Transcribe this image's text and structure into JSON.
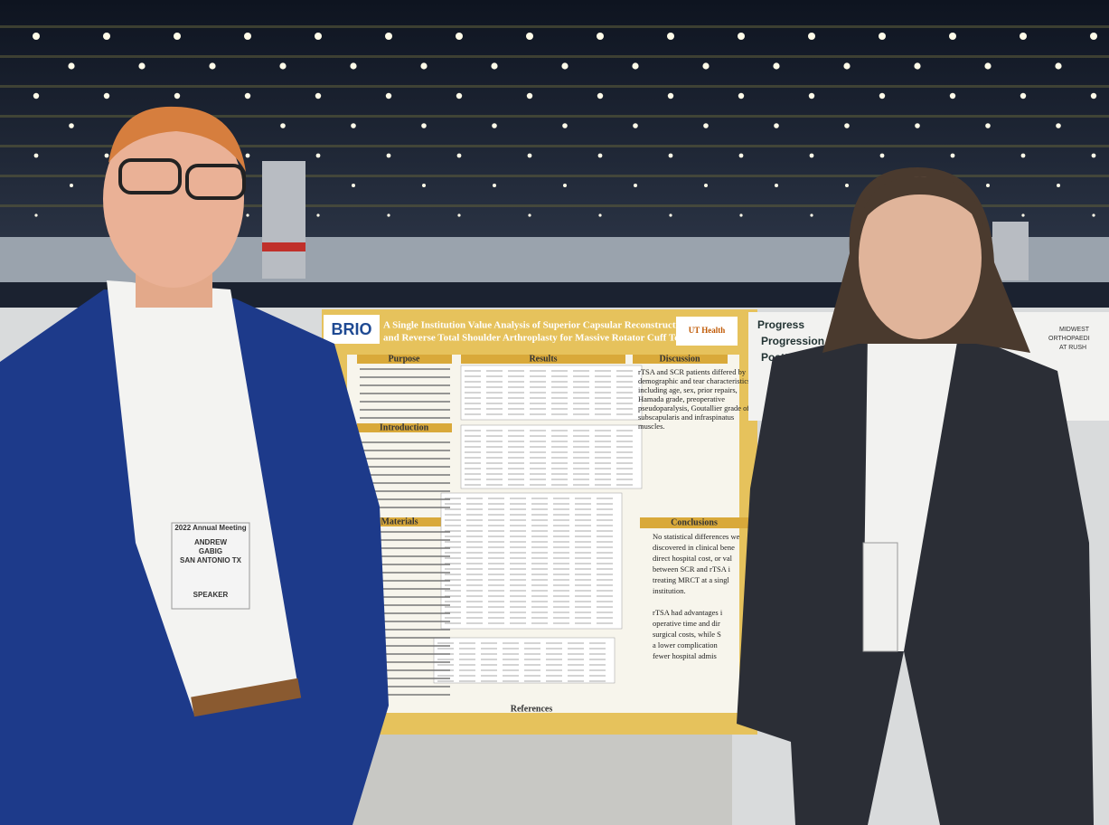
{
  "poster": {
    "logo": "BRIO",
    "title_lines": [
      "A Single Institution Value Analysis of Superior Capsular Reconstruction",
      "and Reverse Total Shoulder Arthroplasty for Massive Rotator Cuff Tears"
    ],
    "partner": "UT Health",
    "sections": {
      "purpose": "Purpose",
      "results": "Results",
      "discussion": "Discussion",
      "introduction": "Introduction",
      "materials": "Materials",
      "conclusions": "Conclusions",
      "references": "References"
    },
    "discussion_lines": [
      "rTSA and SCR patients differed by",
      "demographic and tear characteristics",
      "including age, sex, prior repairs,",
      "Hamada grade, preoperative",
      "pseudoparalysis, Goutallier grade of",
      "subscapularis and infraspinatus",
      "muscles."
    ],
    "conclusion_lines": [
      "No statistical differences we",
      "discovered in clinical bene",
      "direct hospital cost, or val",
      "between SCR and rTSA i",
      "treating MRCT at a singl",
      "institution.",
      "",
      "rTSA had advantages i",
      "operative time and dir",
      "surgical costs, while S",
      "a lower complication",
      "fewer hospital admis"
    ]
  },
  "badge": {
    "event": "2022 Annual Meeting",
    "first": "ANDREW",
    "last": "GABIG",
    "city": "SAN ANTONIO TX",
    "role": "SPEAKER"
  },
  "neighbor_poster": {
    "lines": [
      "Progress",
      "Progression",
      "Posttraum"
    ],
    "org": [
      "MIDWEST",
      "ORTHOPAEDI",
      "AT RUSH"
    ]
  }
}
